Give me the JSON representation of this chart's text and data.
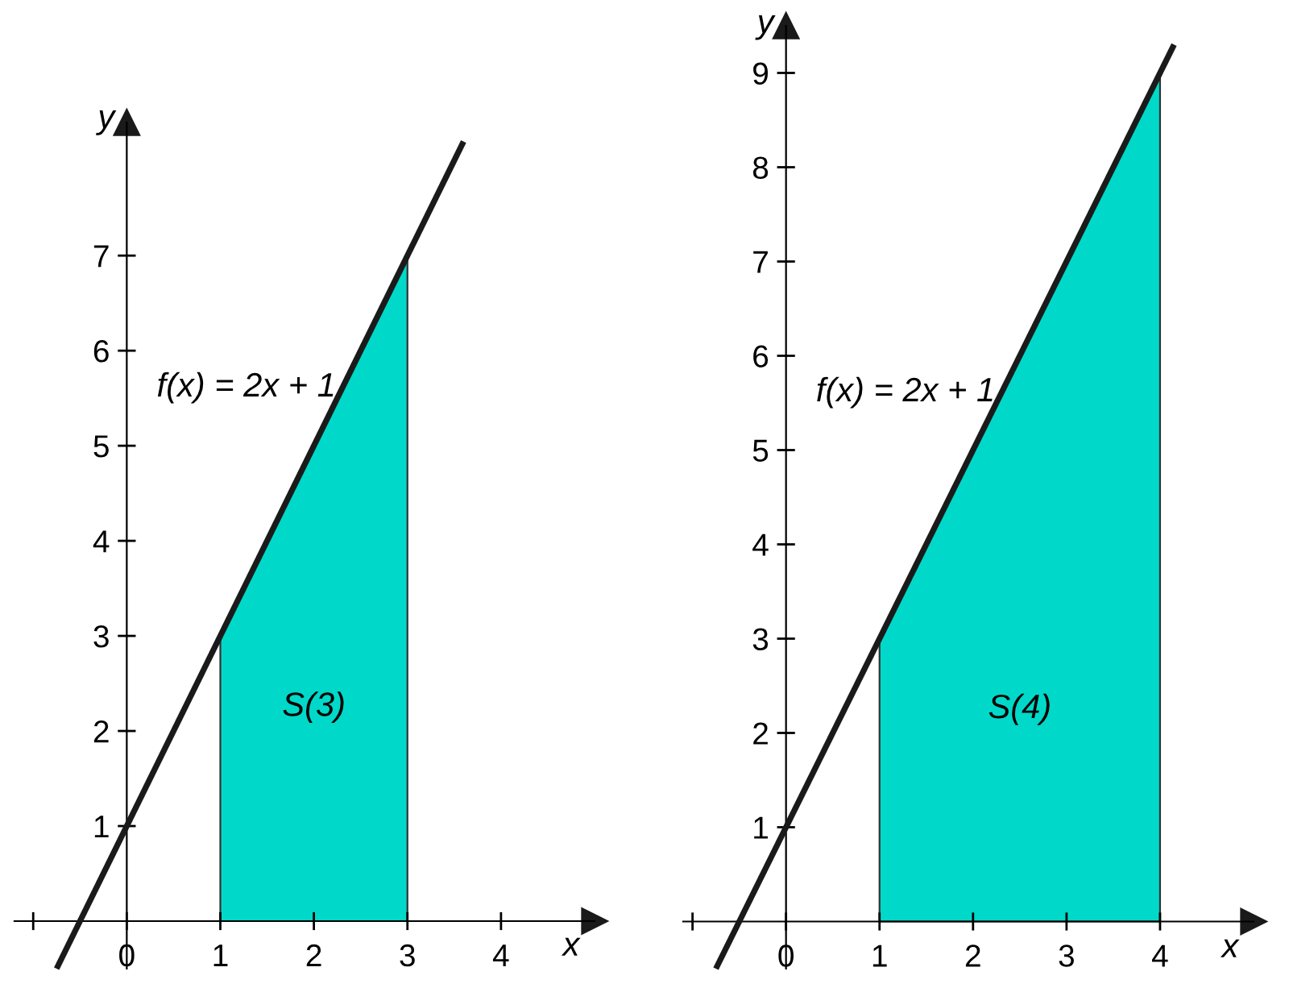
{
  "chart_data": [
    {
      "type": "line",
      "xlabel": "x",
      "ylabel": "y",
      "xlim": [
        -1.2,
        5.0
      ],
      "ylim": [
        -0.5,
        8.4
      ],
      "xticks": [
        {
          "value": -1,
          "label": null
        },
        0,
        1,
        2,
        3,
        4
      ],
      "yticks": [
        1,
        2,
        3,
        4,
        5,
        6,
        7
      ],
      "grid": false,
      "legend": false,
      "series": [
        {
          "type": "area",
          "color": "#00d9c9",
          "x": [
            1,
            3
          ],
          "values": [
            3,
            7
          ]
        },
        {
          "color": "#1a1a1a",
          "x": [
            -0.75,
            3.6
          ],
          "values": [
            -0.5,
            8.2
          ]
        }
      ],
      "annotations": [
        "f(x) = 2x + 1",
        "S(3)"
      ]
    },
    {
      "type": "line",
      "xlabel": "x",
      "ylabel": "y",
      "xlim": [
        -1.1,
        5.0
      ],
      "ylim": [
        -0.5,
        9.5
      ],
      "xticks": [
        {
          "value": -1,
          "label": null
        },
        0,
        1,
        2,
        3,
        4
      ],
      "yticks": [
        1,
        2,
        3,
        4,
        5,
        6,
        7,
        8,
        9
      ],
      "grid": false,
      "legend": false,
      "series": [
        {
          "type": "area",
          "color": "#00d9c9",
          "x": [
            1,
            4
          ],
          "values": [
            3,
            9
          ]
        },
        {
          "color": "#1a1a1a",
          "x": [
            -0.75,
            4.15
          ],
          "values": [
            -0.5,
            9.3
          ]
        }
      ],
      "annotations": [
        "f(x) = 2x + 1",
        "S(4)"
      ]
    }
  ]
}
